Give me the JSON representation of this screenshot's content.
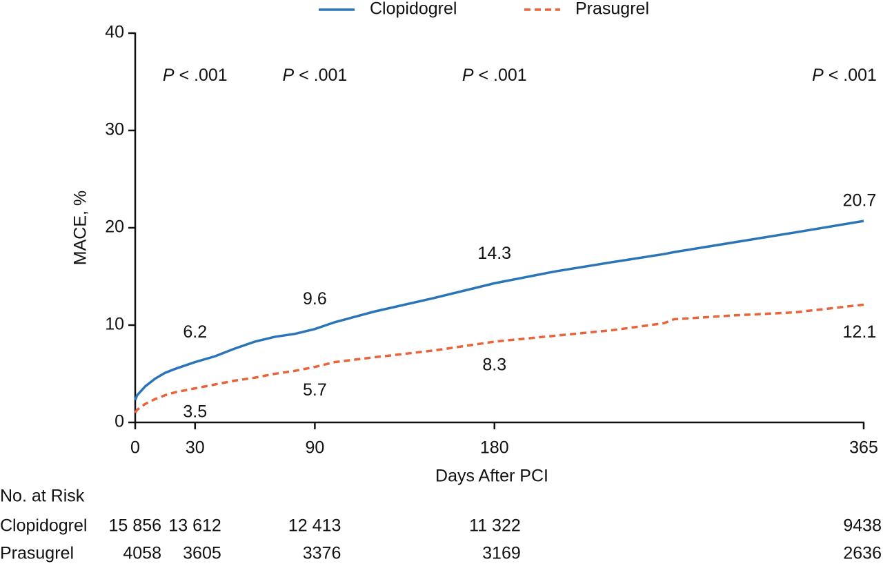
{
  "chart_data": {
    "type": "line",
    "y_label": "MACE, %",
    "x_label": "Days After PCI",
    "x": [
      0,
      1,
      5,
      10,
      15,
      20,
      30,
      40,
      50,
      60,
      70,
      80,
      90,
      100,
      120,
      150,
      180,
      210,
      240,
      265,
      270,
      300,
      330,
      365
    ],
    "series": [
      {
        "name": "Clopidogrel",
        "color": "#2a74b8",
        "line_style": "solid",
        "values": [
          2.3,
          2.8,
          3.7,
          4.5,
          5.1,
          5.5,
          6.2,
          6.8,
          7.6,
          8.3,
          8.8,
          9.1,
          9.6,
          10.3,
          11.4,
          12.8,
          14.3,
          15.5,
          16.5,
          17.3,
          17.5,
          18.5,
          19.5,
          20.7
        ]
      },
      {
        "name": "Prasugrel",
        "color": "#e8643a",
        "line_style": "dashed",
        "values": [
          1.0,
          1.3,
          1.9,
          2.4,
          2.8,
          3.1,
          3.5,
          3.9,
          4.3,
          4.6,
          5.0,
          5.3,
          5.7,
          6.2,
          6.7,
          7.4,
          8.3,
          8.9,
          9.5,
          10.2,
          10.6,
          11.0,
          11.3,
          12.1
        ]
      }
    ],
    "labeled_x": [
      30,
      90,
      180,
      365
    ],
    "p_values": [
      "P < .001",
      "P < .001",
      "P < .001",
      "P < .001"
    ],
    "xlim": [
      0,
      365
    ],
    "xticks": [
      0,
      30,
      90,
      180,
      365
    ],
    "ylim": [
      0,
      40
    ],
    "yticks": [
      0,
      10,
      20,
      30,
      40
    ],
    "grid": false,
    "legend": "top",
    "risk_table": {
      "title": "No. at Risk",
      "rows": [
        {
          "name": "Clopidogrel",
          "values": [
            15856,
            13612,
            12413,
            11322,
            9438
          ],
          "value_labels": [
            "15 856",
            "13 612",
            "12 413",
            "11 322",
            "9438"
          ]
        },
        {
          "name": "Prasugrel",
          "values": [
            4058,
            3605,
            3376,
            3169,
            2636
          ]
        }
      ]
    }
  }
}
